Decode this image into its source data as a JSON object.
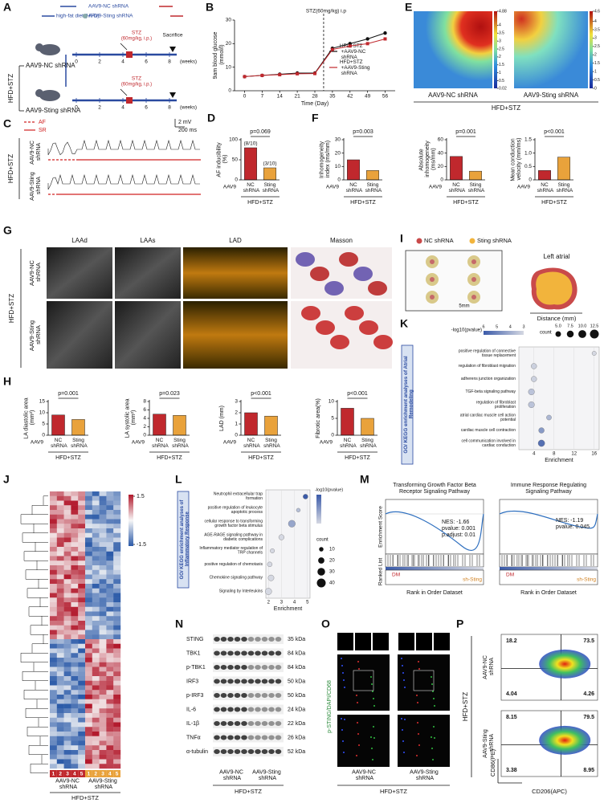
{
  "A": {
    "label": "A",
    "legend_nc": "AAV9-NC shRNA",
    "legend_sting": "AAV9-Sting shRNA",
    "hfd": "high-fat diet (HFD)",
    "stz": "STZ",
    "stz_dose": "(60mg/kg, i.p.)",
    "sacrifice": "Sacrifice",
    "unit": "(weeks)",
    "ticks": [
      0,
      2,
      4,
      6,
      8
    ],
    "group_nc": "AAV9-NC shRNA",
    "group_sting": "AAV9-Sting shRNA",
    "side": "HFD+STZ"
  },
  "B": {
    "label": "B",
    "type": "line",
    "annotation": "STZ(60mg/kg) i.p",
    "x": [
      0,
      7,
      14,
      21,
      28,
      35,
      42,
      49,
      56
    ],
    "xlim": [
      -4,
      60
    ],
    "xlabel": "Time (Day)",
    "ylabel": "9am blood glucose (mmol/l)",
    "ylim": [
      0,
      30
    ],
    "yticks": [
      0,
      10,
      20,
      30
    ],
    "series": [
      {
        "name": "HFD+STZ +AAV9-NC shRNA",
        "color": "#111111",
        "values": [
          6,
          6.5,
          7,
          7.5,
          7.5,
          18,
          20,
          22,
          24.5
        ]
      },
      {
        "name": "HFD+STZ +AAV9-Sting shRNA",
        "color": "#c0282d",
        "values": [
          6,
          6.5,
          6.8,
          7.2,
          7.3,
          17.5,
          19,
          20,
          22
        ]
      }
    ]
  },
  "C": {
    "label": "C",
    "af": "AF",
    "sr": "SR",
    "scale_v": "2 mV",
    "scale_t": "200 ms",
    "row_nc": "AAV9-NC shRNA",
    "row_sting": "AAV9-Sting shRNA",
    "side": "HFD+STZ"
  },
  "D": {
    "label": "D",
    "type": "bar",
    "ylabel": "AF inducibility (%)",
    "prefix": "AAV9",
    "categories": [
      "NC shRNA",
      "Sting shRNA"
    ],
    "values": [
      80,
      30
    ],
    "value_labels": [
      "(8/10)",
      "(3/10)"
    ],
    "ylim": [
      0,
      100
    ],
    "yticks": [
      0,
      50,
      100
    ],
    "p": "p=0.069",
    "group": "HFD+STZ",
    "colors": [
      "#c0282d",
      "#e9a23b"
    ]
  },
  "E": {
    "label": "E",
    "nc": "AAV9-NC shRNA",
    "sting": "AAV9-Sting shRNA",
    "group": "HFD+STZ",
    "cbar1": [
      4.88,
      4,
      3.5,
      3,
      2.5,
      2,
      1.5,
      1,
      0.5,
      0.02
    ],
    "cbar2": [
      4.6,
      4,
      3.5,
      3,
      2.5,
      2,
      1.5,
      1,
      0.5,
      0
    ]
  },
  "F": {
    "label": "F",
    "charts": [
      {
        "type": "bar",
        "ylabel": "Inhomogeneity index (ms/mm)",
        "prefix": "AAV9",
        "categories": [
          "NC shRNA",
          "Sting shRNA"
        ],
        "values": [
          15,
          7
        ],
        "ylim": [
          0,
          30
        ],
        "yticks": [
          0,
          10,
          20,
          30
        ],
        "p": "p=0.003",
        "group": "HFD+STZ",
        "colors": [
          "#c0282d",
          "#e9a23b"
        ]
      },
      {
        "type": "bar",
        "ylabel": "Absolute inhomogeneity (ms/mm)",
        "prefix": "AAV9",
        "categories": [
          "NC shRNA",
          "Sting shRNA"
        ],
        "values": [
          35,
          13
        ],
        "ylim": [
          0,
          60
        ],
        "yticks": [
          0,
          20,
          40,
          60
        ],
        "p": "p=0.001",
        "group": "HFD+STZ",
        "colors": [
          "#c0282d",
          "#e9a23b"
        ]
      },
      {
        "type": "bar",
        "ylabel": "Mean conduction velocity (mm/ms)",
        "prefix": "AAV9",
        "categories": [
          "NC shRNA",
          "Sting shRNA"
        ],
        "values": [
          0.35,
          0.85
        ],
        "ylim": [
          0,
          1.5
        ],
        "yticks": [
          0,
          0.5,
          {
            "value": 1,
            "label": "1.0"
          },
          1.5
        ],
        "p": "p<0.001",
        "group": "HFD+STZ",
        "colors": [
          "#c0282d",
          "#e9a23b"
        ]
      }
    ]
  },
  "G": {
    "label": "G",
    "cols": [
      "LAAd",
      "LAAs",
      "LAD",
      "Masson"
    ],
    "row_nc": "AAV9-NC shRNA",
    "row_sting": "AAV9-Sting shRNA",
    "side": "HFD+STZ"
  },
  "H": {
    "label": "H",
    "charts": [
      {
        "type": "bar",
        "ylabel": "LA diastolic area (mm²)",
        "prefix": "AAV9",
        "categories": [
          "NC shRNA",
          "Sting shRNA"
        ],
        "values": [
          9,
          7
        ],
        "ylim": [
          0,
          15
        ],
        "yticks": [
          0,
          5,
          10,
          15
        ],
        "p": "p=0.001",
        "group": "HFD+STZ",
        "colors": [
          "#c0282d",
          "#e9a23b"
        ]
      },
      {
        "type": "bar",
        "ylabel": "LA systolic area (mm²)",
        "prefix": "AAV9",
        "categories": [
          "NC shRNA",
          "Sting shRNA"
        ],
        "values": [
          5,
          4.7
        ],
        "ylim": [
          0,
          8
        ],
        "yticks": [
          0,
          2,
          4,
          6,
          8
        ],
        "p": "p=0.023",
        "group": "HFD+STZ",
        "colors": [
          "#c0282d",
          "#e9a23b"
        ]
      },
      {
        "type": "bar",
        "ylabel": "LAD (mm)",
        "prefix": "AAV9",
        "categories": [
          "NC shRNA",
          "Sting shRNA"
        ],
        "values": [
          2,
          1.7
        ],
        "ylim": [
          0,
          3
        ],
        "yticks": [
          0,
          1,
          2,
          3
        ],
        "p": "p<0.001",
        "group": "HFD+STZ",
        "colors": [
          "#c0282d",
          "#e9a23b"
        ]
      },
      {
        "type": "bar",
        "ylabel": "Fibrotic area(%)",
        "prefix": "AAV9",
        "categories": [
          "NC shRNA",
          "Sting shRNA"
        ],
        "values": [
          8,
          5
        ],
        "ylim": [
          0,
          10
        ],
        "yticks": [
          0,
          5,
          10
        ],
        "p": "p<0.001",
        "group": "HFD+STZ",
        "colors": [
          "#c0282d",
          "#e9a23b"
        ]
      }
    ]
  },
  "I": {
    "label": "I",
    "legend": [
      "NC shRNA",
      "Sting shRNA"
    ],
    "colors": [
      "#c94a4a",
      "#f2b43c"
    ],
    "scale": "5mm",
    "title": "Left atrial",
    "xlabel": "Distance (mm)"
  },
  "J": {
    "label": "J",
    "cbar_ticks": [
      1.5,
      -1.5
    ],
    "samples_nc": [
      1,
      2,
      3,
      4,
      5
    ],
    "samples_sting": [
      1,
      2,
      3,
      4,
      5
    ],
    "nc": "AAV9-NC shRNA",
    "sting": "AAV9-Sting shRNA",
    "group": "HFD+STZ"
  },
  "K": {
    "label": "K",
    "type": "dot",
    "title": "GO/ KEGG enrichment analyses of Atrial Remodeling",
    "xlabel": "Enrichment",
    "xlim": [
      1,
      17
    ],
    "xticks": [
      4,
      8,
      12,
      16
    ],
    "p_title": "-log10(pvalue)",
    "color_ticks": [
      6,
      5,
      4,
      3
    ],
    "count_title": "count",
    "count_ticks": [
      {
        "value": 5,
        "label": "5.0"
      },
      {
        "value": 7.5,
        "label": "7.5"
      },
      {
        "value": 10,
        "label": "10.0"
      },
      {
        "value": 12.5,
        "label": "12.5"
      }
    ],
    "terms": [
      "positive regulation of connective tissue replacement",
      "regulation of fibroblast migration",
      "adherens junction organization",
      "TGF-beta signaling pathway",
      "regulation of fibroblast proliferation",
      "atrial cardiac muscle cell action potential",
      "cardiac muscle cell contraction",
      "cell communication involved in cardiac conduction"
    ],
    "enrichment": [
      16,
      4,
      4,
      3.5,
      3.5,
      7,
      5.5,
      5.5
    ],
    "count": [
      3,
      5,
      5,
      6,
      6,
      4,
      5,
      7
    ],
    "neg_log10_p": [
      3,
      3.2,
      3.2,
      3.5,
      3.5,
      3.8,
      4.5,
      5.5
    ]
  },
  "L": {
    "label": "L",
    "type": "dot",
    "title": "GO/ KEGG enrichment analyses of Inflammatory Response",
    "xlabel": "Enrichment",
    "xlim": [
      1.8,
      5.2
    ],
    "xticks": [
      2,
      3,
      4,
      5
    ],
    "p_title": "-log10(pvalue)",
    "count_title": "count",
    "count_ticks": [
      10,
      20,
      30,
      40
    ],
    "terms": [
      "Neutrophil extracellular trap formation",
      "positive regulation of leukocyte apoptotic process",
      "cellular response to transforming growth factor beta stimulus",
      "AGE-RAGE signaling pathway in diabetic complications",
      "Inflammatory mediator regulation of TRP channels",
      "positive regulation of chemotaxis",
      "Chemokine signaling pathway",
      "Signaling by Interleukins"
    ],
    "enrichment": [
      4.85,
      4.3,
      3.8,
      3,
      2.3,
      2.1,
      2.2,
      2
    ],
    "count": [
      12,
      8,
      25,
      15,
      10,
      12,
      18,
      22
    ],
    "neg_log10_p": [
      8,
      4,
      5,
      3,
      3,
      3,
      3,
      3
    ]
  },
  "M": {
    "label": "M",
    "ylabel_top": "Enrichment Score",
    "ylabel_bottom": "Ranked List",
    "xlabel": "Rank in Order Dataset",
    "dm": "DM",
    "sting": "sh-Sting",
    "plots": [
      {
        "title_lines": [
          "Transforming Growth Factor Beta",
          "Receptor Signaling Pathway"
        ],
        "stats": [
          "NES: -1.66",
          "pvalue: 0.001",
          "p.adjust: 0.01"
        ]
      },
      {
        "title_lines": [
          "Immune Response Regulating",
          "Signaling Pathway"
        ],
        "stats": [
          "NES: -1.19",
          "pvalue: 0.045"
        ]
      }
    ]
  },
  "N": {
    "label": "N",
    "proteins": [
      "STING",
      "TBK1",
      "p-TBK1",
      "IRF3",
      "p-IRF3",
      "IL-6",
      "IL-1β",
      "TNFα",
      "α-tubulin"
    ],
    "sizes": [
      "35 kDa",
      "84 kDa",
      "84 kDa",
      "50 kDa",
      "50 kDa",
      "24 kDa",
      "22 kDa",
      "26 kDa",
      "52 kDa"
    ],
    "groups": [
      "AAV9-NC shRNA",
      "AAV9-Sting shRNA"
    ],
    "side": "HFD+STZ"
  },
  "O": {
    "label": "O",
    "ylabel": "p-STING/DAPI/CD68",
    "groups": [
      "AAV9-NC shRNA",
      "AAV9-Sting shRNA"
    ],
    "side": "HFD+STZ"
  },
  "P": {
    "label": "P",
    "side": "HFD+STZ",
    "ylabel": "CD86(PE)",
    "xlabel": "CD206(APC)",
    "rows": [
      {
        "name": "AAV9-NC shRNA",
        "quadrants": [
          18.2,
          73.5,
          4.04,
          4.26
        ]
      },
      {
        "name": "AAV9-Sting shRNA",
        "quadrants": [
          8.15,
          79.5,
          3.38,
          8.95
        ]
      }
    ]
  }
}
